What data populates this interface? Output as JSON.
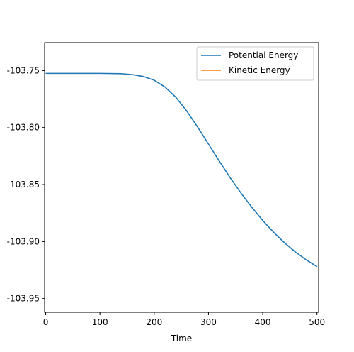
{
  "chart_data": {
    "type": "line",
    "title": "",
    "xlabel": "Time",
    "ylabel": "",
    "xlim": [
      -2,
      503
    ],
    "ylim": [
      -103.962,
      -103.7255
    ],
    "xticks": [
      0,
      100,
      200,
      300,
      400,
      500
    ],
    "yticks": [
      -103.75,
      -103.8,
      -103.85,
      -103.9,
      -103.95
    ],
    "ytick_labels": [
      "-103.75",
      "-103.80",
      "-103.85",
      "-103.90",
      "-103.95"
    ],
    "grid": false,
    "legend_position": "top-right",
    "series": [
      {
        "name": "Potential Energy",
        "color": "#1f77b4",
        "x": [
          0,
          50,
          100,
          140,
          160,
          180,
          200,
          220,
          240,
          260,
          280,
          300,
          320,
          340,
          360,
          380,
          400,
          420,
          440,
          460,
          480,
          500
        ],
        "y": [
          -103.7525,
          -103.7525,
          -103.7525,
          -103.7528,
          -103.7536,
          -103.7552,
          -103.7585,
          -103.7645,
          -103.7735,
          -103.7855,
          -103.7995,
          -103.8145,
          -103.8295,
          -103.844,
          -103.8575,
          -103.87,
          -103.8815,
          -103.8918,
          -103.901,
          -103.909,
          -103.916,
          -103.922
        ]
      },
      {
        "name": "Kinetic Energy",
        "color": "#ff7f0e",
        "x": [],
        "y": []
      }
    ]
  }
}
